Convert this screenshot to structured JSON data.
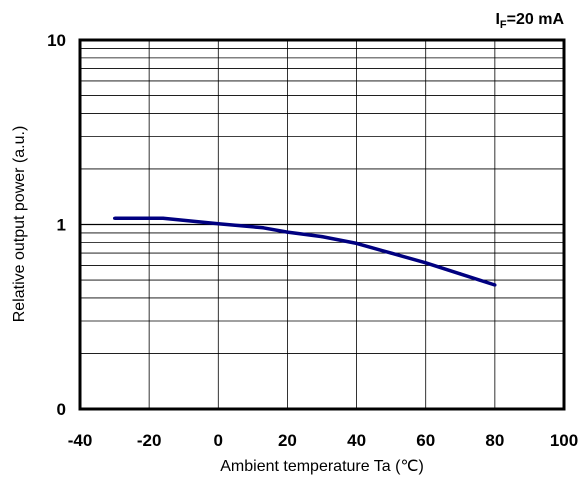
{
  "chart_data": {
    "type": "line",
    "xlabel": "Ambient temperature Ta (℃)",
    "ylabel": "Relative output power (a.u.)",
    "condition": {
      "symbol": "I",
      "subscript": "F",
      "value": "=20 mA"
    },
    "x_scale": "linear",
    "y_scale": "log",
    "xlim": [
      -40,
      100
    ],
    "ylim": [
      0.1,
      10
    ],
    "x_ticks": [
      -40,
      -20,
      0,
      20,
      40,
      60,
      80,
      100
    ],
    "x_tick_labels": [
      "-40",
      "-20",
      "0",
      "20",
      "40",
      "60",
      "80",
      "100"
    ],
    "y_ticks": [
      0.1,
      1,
      10
    ],
    "y_tick_labels": [
      "0",
      "1",
      "10"
    ],
    "grid": true,
    "series": [
      {
        "color": "#000080",
        "x": [
          -30,
          -16,
          0,
          13,
          20,
          30,
          40,
          50,
          60,
          70,
          80
        ],
        "y": [
          1.08,
          1.08,
          1.01,
          0.96,
          0.91,
          0.86,
          0.79,
          0.7,
          0.62,
          0.54,
          0.47
        ]
      }
    ]
  }
}
